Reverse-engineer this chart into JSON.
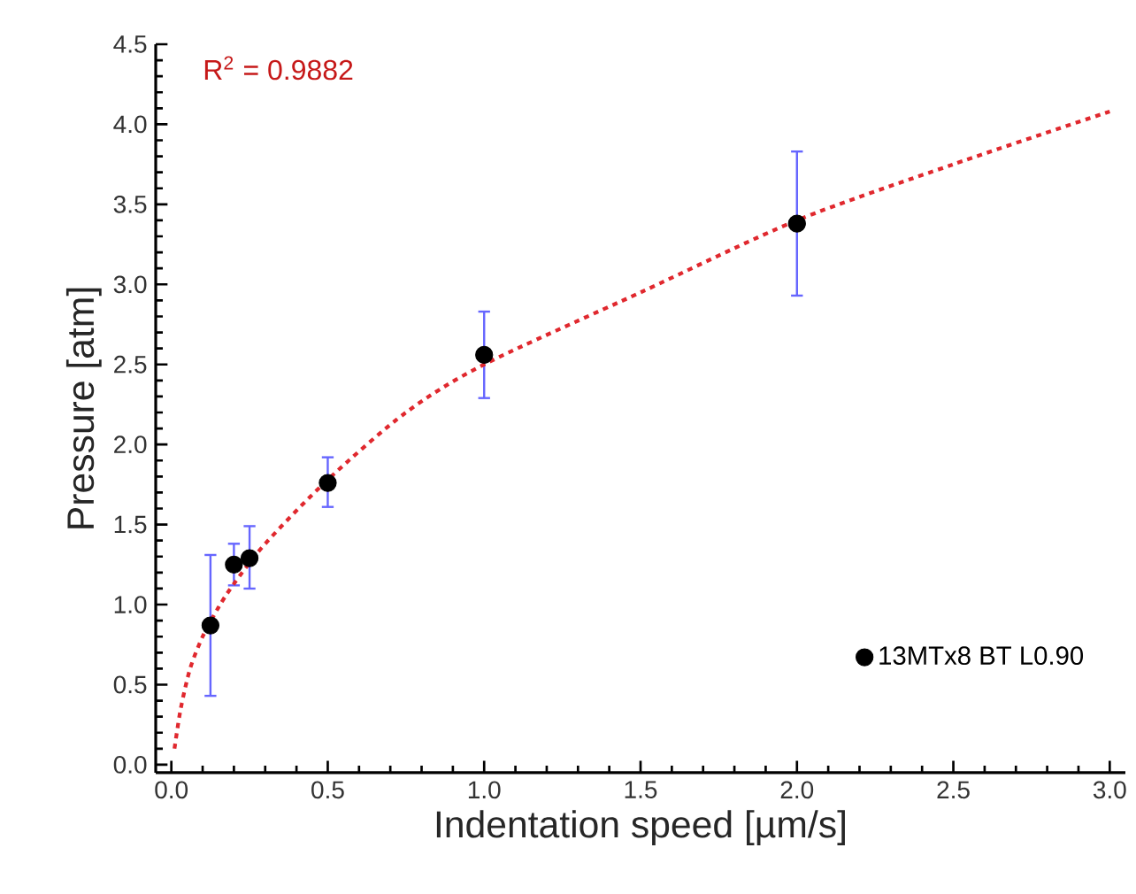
{
  "chart_data": {
    "type": "scatter",
    "xlabel": "Indentation speed [µm/s]",
    "ylabel": "Pressure [atm]",
    "xlim": [
      -0.05,
      3.05
    ],
    "ylim": [
      -0.05,
      4.5
    ],
    "xticks": [
      {
        "value": 0,
        "label": "0.0"
      },
      {
        "value": 0.5,
        "label": "0.5"
      },
      {
        "value": 1,
        "label": "1.0"
      },
      {
        "value": 1.5,
        "label": "1.5"
      },
      {
        "value": 2,
        "label": "2.0"
      },
      {
        "value": 2.5,
        "label": "2.5"
      },
      {
        "value": 3,
        "label": "3.0"
      }
    ],
    "yticks": [
      {
        "value": 0,
        "label": "0.0"
      },
      {
        "value": 0.5,
        "label": "0.5"
      },
      {
        "value": 1,
        "label": "1.0"
      },
      {
        "value": 1.5,
        "label": "1.5"
      },
      {
        "value": 2,
        "label": "2.0"
      },
      {
        "value": 2.5,
        "label": "2.5"
      },
      {
        "value": 3,
        "label": "3.0"
      },
      {
        "value": 3.5,
        "label": "3.5"
      },
      {
        "value": 4,
        "label": "4.0"
      },
      {
        "value": 4.5,
        "label": "4.5"
      }
    ],
    "series": [
      {
        "name": "13MTx8 BT L0.90",
        "color": "#000000",
        "marker": "circle",
        "x": [
          0.125,
          0.2,
          0.25,
          0.5,
          1.0,
          2.0
        ],
        "values": [
          0.87,
          1.25,
          1.29,
          1.76,
          2.56,
          3.38
        ],
        "errors": [
          [
            0.43,
            1.31
          ],
          [
            1.12,
            1.38
          ],
          [
            1.1,
            1.49
          ],
          [
            1.61,
            1.92
          ],
          [
            2.29,
            2.83
          ],
          [
            2.93,
            3.83
          ]
        ]
      },
      {
        "type": "line",
        "color": "#e0282e",
        "line_style": "dotted",
        "x": [
          0.01,
          0.03,
          0.06,
          0.1,
          0.15,
          0.2,
          0.3,
          0.5,
          0.75,
          1.0,
          1.5,
          2.0,
          2.5,
          3.0
        ],
        "values": [
          0.1,
          0.35,
          0.6,
          0.8,
          0.98,
          1.13,
          1.38,
          1.78,
          2.2,
          2.5,
          2.95,
          3.4,
          3.75,
          4.08
        ]
      }
    ],
    "annotations": [
      "R$^{2}$ = 0.9882"
    ],
    "legend": "bottom right",
    "grid": false
  }
}
